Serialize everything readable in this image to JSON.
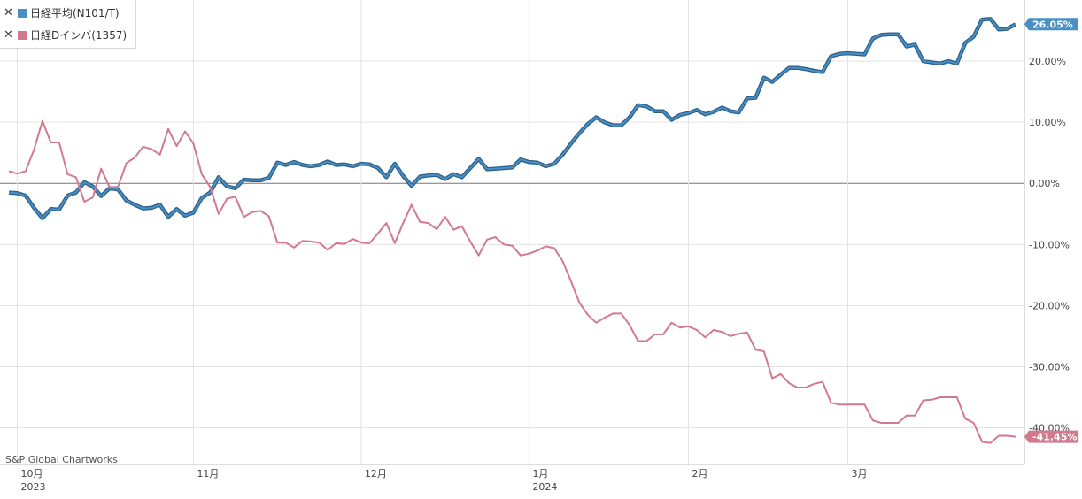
{
  "legend": {
    "items": [
      {
        "label": "日経平均(N101/T)",
        "color": "#4a8fc2"
      },
      {
        "label": "日経Dインバ(1357)",
        "color": "#d17a8d"
      }
    ]
  },
  "credit": "S&P Global Chartworks",
  "chart_data": {
    "type": "line",
    "y_ticks": [
      "20.00%",
      "10.00%",
      "0.00%",
      "-10.00%",
      "-20.00%",
      "-30.00%",
      "-40.00%"
    ],
    "y_tick_values": [
      20,
      10,
      0,
      -10,
      -20,
      -30,
      -40
    ],
    "ylim": [
      -46,
      30
    ],
    "x_labels": [
      {
        "label": "10月",
        "sub": "2023",
        "t": 1
      },
      {
        "label": "11月",
        "sub": "",
        "t": 22
      },
      {
        "label": "12月",
        "sub": "",
        "t": 42
      },
      {
        "label": "1月",
        "sub": "2024",
        "t": 62
      },
      {
        "label": "2月",
        "sub": "",
        "t": 81
      },
      {
        "label": "3月",
        "sub": "",
        "t": 100
      }
    ],
    "grid": true,
    "series": [
      {
        "name": "日経平均(N101/T)",
        "color": "#3a76a8",
        "last_label": "26.05%",
        "values": [
          -1.5,
          -1.6,
          -2.0,
          -4.0,
          -5.7,
          -4.2,
          -4.3,
          -2.0,
          -1.5,
          0.2,
          -0.5,
          -2.1,
          -0.8,
          -1.0,
          -2.8,
          -3.5,
          -4.1,
          -4.0,
          -3.5,
          -5.5,
          -4.2,
          -5.3,
          -4.8,
          -2.4,
          -1.5,
          1.0,
          -0.5,
          -0.8,
          0.6,
          0.5,
          0.5,
          0.9,
          3.4,
          3.0,
          3.5,
          3.0,
          2.8,
          3.0,
          3.6,
          3.0,
          3.1,
          2.8,
          3.2,
          3.1,
          2.5,
          1.0,
          3.2,
          1.2,
          -0.4,
          1.1,
          1.3,
          1.4,
          0.7,
          1.5,
          1.0,
          2.5,
          4.0,
          2.3,
          2.4,
          2.5,
          2.6,
          3.9,
          3.5,
          3.4,
          2.8,
          3.2,
          4.7,
          6.5,
          8.2,
          9.7,
          10.8,
          10.0,
          9.5,
          9.5,
          10.8,
          12.8,
          12.6,
          11.8,
          11.8,
          10.4,
          11.2,
          11.5,
          12.0,
          11.3,
          11.7,
          12.4,
          11.8,
          11.6,
          13.9,
          14.0,
          17.3,
          16.6,
          17.8,
          18.9,
          18.9,
          18.7,
          18.4,
          18.2,
          20.8,
          21.2,
          21.3,
          21.2,
          21.1,
          23.7,
          24.3,
          24.4,
          24.4,
          22.4,
          22.7,
          20.0,
          19.8,
          19.6,
          20.0,
          19.6,
          23.0,
          24.0,
          26.8,
          26.9,
          25.2,
          25.3,
          26.05
        ]
      },
      {
        "name": "日経Dインバ(1357)",
        "color": "#d17a8d",
        "last_label": "-41.45%",
        "values": [
          2.0,
          1.6,
          2.0,
          5.5,
          10.2,
          6.7,
          6.7,
          1.5,
          1.0,
          -3.0,
          -2.3,
          2.4,
          -0.6,
          -0.6,
          3.3,
          4.2,
          6.0,
          5.6,
          4.7,
          8.9,
          6.1,
          8.5,
          6.5,
          1.5,
          -0.6,
          -5.0,
          -2.5,
          -2.2,
          -5.5,
          -4.7,
          -4.5,
          -5.4,
          -9.7,
          -9.7,
          -10.5,
          -9.4,
          -9.5,
          -9.7,
          -10.9,
          -9.8,
          -9.9,
          -9.1,
          -9.7,
          -9.8,
          -8.2,
          -6.5,
          -9.8,
          -6.5,
          -3.5,
          -6.3,
          -6.5,
          -7.5,
          -5.5,
          -7.6,
          -7.0,
          -9.5,
          -11.8,
          -9.2,
          -8.8,
          -10.0,
          -10.2,
          -11.8,
          -11.5,
          -11.0,
          -10.3,
          -10.6,
          -12.7,
          -16.0,
          -19.5,
          -21.5,
          -22.8,
          -22.0,
          -21.3,
          -21.3,
          -23.2,
          -25.8,
          -25.8,
          -24.7,
          -24.7,
          -22.8,
          -23.6,
          -23.4,
          -24.0,
          -25.2,
          -24.0,
          -24.3,
          -25.0,
          -24.6,
          -24.4,
          -27.2,
          -27.5,
          -31.9,
          -31.2,
          -32.7,
          -33.4,
          -33.4,
          -32.8,
          -32.5,
          -35.9,
          -36.2,
          -36.2,
          -36.2,
          -36.2,
          -38.8,
          -39.2,
          -39.2,
          -39.2,
          -38.0,
          -38.0,
          -35.5,
          -35.4,
          -35.0,
          -35.0,
          -35.0,
          -38.5,
          -39.2,
          -42.3,
          -42.5,
          -41.3,
          -41.3,
          -41.45
        ]
      }
    ]
  }
}
